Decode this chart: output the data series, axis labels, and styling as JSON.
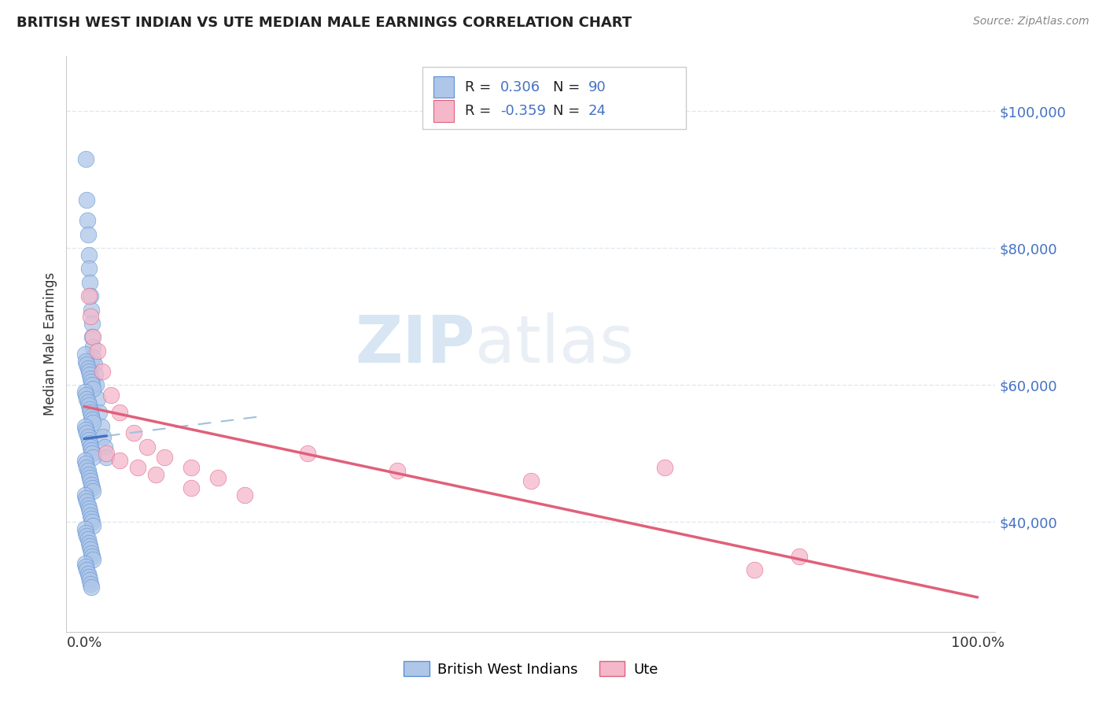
{
  "title": "BRITISH WEST INDIAN VS UTE MEDIAN MALE EARNINGS CORRELATION CHART",
  "source": "Source: ZipAtlas.com",
  "ylabel": "Median Male Earnings",
  "watermark_zip": "ZIP",
  "watermark_atlas": "atlas",
  "legend_bwi_R": "0.306",
  "legend_bwi_N": "90",
  "legend_ute_R": "-0.359",
  "legend_ute_N": "24",
  "legend_bwi_label": "British West Indians",
  "legend_ute_label": "Ute",
  "ytick_values": [
    40000,
    60000,
    80000,
    100000
  ],
  "ytick_labels": [
    "$40,000",
    "$60,000",
    "$80,000",
    "$100,000"
  ],
  "xtick_values": [
    0,
    100
  ],
  "xtick_labels": [
    "0.0%",
    "100.0%"
  ],
  "xlim": [
    -2,
    102
  ],
  "ylim": [
    24000,
    108000
  ],
  "bwi_color": "#aec6e8",
  "bwi_edge_color": "#5b8fd4",
  "bwi_trend_color": "#4472c4",
  "bwi_dashed_color": "#a0c0e0",
  "ute_color": "#f5b8cb",
  "ute_edge_color": "#e0607a",
  "ute_trend_color": "#e0607a",
  "grid_color": "#e0e8f0",
  "bg_color": "#ffffff",
  "text_blue": "#4472c4",
  "bwi_points": [
    [
      0.15,
      93000
    ],
    [
      0.25,
      87000
    ],
    [
      0.35,
      84000
    ],
    [
      0.4,
      82000
    ],
    [
      0.5,
      79000
    ],
    [
      0.55,
      77000
    ],
    [
      0.65,
      75000
    ],
    [
      0.7,
      73000
    ],
    [
      0.8,
      71000
    ],
    [
      0.85,
      69000
    ],
    [
      0.9,
      67000
    ],
    [
      0.95,
      65500
    ],
    [
      1.0,
      64000
    ],
    [
      1.1,
      63000
    ],
    [
      1.2,
      61500
    ],
    [
      1.3,
      60000
    ],
    [
      1.5,
      58000
    ],
    [
      1.7,
      56000
    ],
    [
      1.9,
      54000
    ],
    [
      2.1,
      52500
    ],
    [
      2.3,
      51000
    ],
    [
      2.5,
      49500
    ],
    [
      0.1,
      64500
    ],
    [
      0.2,
      63500
    ],
    [
      0.3,
      63000
    ],
    [
      0.4,
      62500
    ],
    [
      0.5,
      62000
    ],
    [
      0.6,
      61500
    ],
    [
      0.7,
      61000
    ],
    [
      0.8,
      60500
    ],
    [
      0.9,
      60000
    ],
    [
      1.0,
      59500
    ],
    [
      0.1,
      59000
    ],
    [
      0.2,
      58500
    ],
    [
      0.3,
      58000
    ],
    [
      0.4,
      57500
    ],
    [
      0.5,
      57000
    ],
    [
      0.6,
      56500
    ],
    [
      0.7,
      56000
    ],
    [
      0.8,
      55500
    ],
    [
      0.9,
      55000
    ],
    [
      1.0,
      54500
    ],
    [
      0.1,
      54000
    ],
    [
      0.2,
      53500
    ],
    [
      0.3,
      53000
    ],
    [
      0.4,
      52500
    ],
    [
      0.5,
      52000
    ],
    [
      0.6,
      51500
    ],
    [
      0.7,
      51000
    ],
    [
      0.8,
      50500
    ],
    [
      0.9,
      50000
    ],
    [
      1.0,
      49500
    ],
    [
      0.1,
      49000
    ],
    [
      0.2,
      48500
    ],
    [
      0.3,
      48000
    ],
    [
      0.4,
      47500
    ],
    [
      0.5,
      47000
    ],
    [
      0.6,
      46500
    ],
    [
      0.7,
      46000
    ],
    [
      0.8,
      45500
    ],
    [
      0.9,
      45000
    ],
    [
      1.0,
      44500
    ],
    [
      0.1,
      44000
    ],
    [
      0.2,
      43500
    ],
    [
      0.3,
      43000
    ],
    [
      0.4,
      42500
    ],
    [
      0.5,
      42000
    ],
    [
      0.6,
      41500
    ],
    [
      0.7,
      41000
    ],
    [
      0.8,
      40500
    ],
    [
      0.9,
      40000
    ],
    [
      1.0,
      39500
    ],
    [
      0.1,
      39000
    ],
    [
      0.2,
      38500
    ],
    [
      0.3,
      38000
    ],
    [
      0.4,
      37500
    ],
    [
      0.5,
      37000
    ],
    [
      0.6,
      36500
    ],
    [
      0.7,
      36000
    ],
    [
      0.8,
      35500
    ],
    [
      0.9,
      35000
    ],
    [
      1.0,
      34500
    ],
    [
      0.1,
      34000
    ],
    [
      0.2,
      33500
    ],
    [
      0.3,
      33000
    ],
    [
      0.4,
      32500
    ],
    [
      0.5,
      32000
    ],
    [
      0.6,
      31500
    ],
    [
      0.7,
      31000
    ],
    [
      0.8,
      30500
    ]
  ],
  "ute_points": [
    [
      0.5,
      73000
    ],
    [
      0.7,
      70000
    ],
    [
      1.0,
      67000
    ],
    [
      1.5,
      65000
    ],
    [
      2.0,
      62000
    ],
    [
      3.0,
      58500
    ],
    [
      4.0,
      56000
    ],
    [
      5.5,
      53000
    ],
    [
      7.0,
      51000
    ],
    [
      9.0,
      49500
    ],
    [
      12.0,
      48000
    ],
    [
      15.0,
      46500
    ],
    [
      2.5,
      50000
    ],
    [
      4.0,
      49000
    ],
    [
      6.0,
      48000
    ],
    [
      8.0,
      47000
    ],
    [
      12.0,
      45000
    ],
    [
      18.0,
      44000
    ],
    [
      25.0,
      50000
    ],
    [
      35.0,
      47500
    ],
    [
      50.0,
      46000
    ],
    [
      65.0,
      48000
    ],
    [
      80.0,
      35000
    ],
    [
      75.0,
      33000
    ]
  ]
}
